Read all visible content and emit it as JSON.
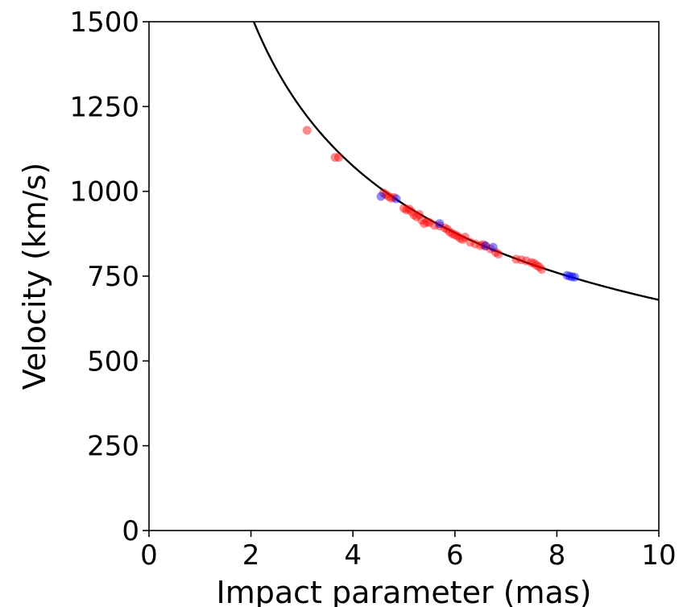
{
  "chart_data": {
    "type": "scatter",
    "title": "",
    "xlabel": "Impact parameter (mas)",
    "ylabel": "Velocity (km/s)",
    "xlim": [
      0,
      10
    ],
    "ylim": [
      0,
      1500
    ],
    "xticks": [
      "0",
      "2",
      "4",
      "6",
      "8",
      "10"
    ],
    "yticks": [
      "0",
      "250",
      "500",
      "750",
      "1000",
      "1250",
      "1500"
    ],
    "grid": false,
    "legend": "none",
    "fit_curve": {
      "form": "v = k / sqrt(b)",
      "k": 2150,
      "color": "#000000",
      "x_range": [
        2.05,
        10
      ]
    },
    "series": [
      {
        "color": "#ff0000",
        "points": [
          [
            3.1,
            1180
          ],
          [
            3.65,
            1100
          ],
          [
            3.72,
            1100
          ],
          [
            4.6,
            995
          ],
          [
            4.65,
            990
          ],
          [
            4.7,
            985
          ],
          [
            4.75,
            980
          ],
          [
            4.8,
            982
          ],
          [
            5.0,
            950
          ],
          [
            5.05,
            945
          ],
          [
            5.1,
            948
          ],
          [
            5.15,
            940
          ],
          [
            5.2,
            930
          ],
          [
            5.25,
            925
          ],
          [
            5.3,
            932
          ],
          [
            5.35,
            915
          ],
          [
            5.4,
            905
          ],
          [
            5.45,
            910
          ],
          [
            5.5,
            908
          ],
          [
            5.6,
            900
          ],
          [
            5.7,
            898
          ],
          [
            5.8,
            892
          ],
          [
            5.85,
            888
          ],
          [
            5.9,
            880
          ],
          [
            5.95,
            875
          ],
          [
            6.0,
            872
          ],
          [
            6.05,
            868
          ],
          [
            6.1,
            862
          ],
          [
            6.15,
            858
          ],
          [
            6.2,
            865
          ],
          [
            6.3,
            850
          ],
          [
            6.4,
            845
          ],
          [
            6.5,
            840
          ],
          [
            6.55,
            843
          ],
          [
            6.6,
            838
          ],
          [
            6.7,
            830
          ],
          [
            6.8,
            820
          ],
          [
            6.85,
            815
          ],
          [
            7.2,
            800
          ],
          [
            7.3,
            798
          ],
          [
            7.4,
            795
          ],
          [
            7.5,
            790
          ],
          [
            7.55,
            788
          ],
          [
            7.6,
            782
          ],
          [
            7.65,
            778
          ],
          [
            7.7,
            770
          ]
        ]
      },
      {
        "color": "#0000ff",
        "points": [
          [
            4.55,
            985
          ],
          [
            4.85,
            978
          ],
          [
            5.7,
            905
          ],
          [
            6.6,
            840
          ],
          [
            6.75,
            835
          ],
          [
            8.2,
            752
          ],
          [
            8.25,
            750
          ],
          [
            8.3,
            748
          ],
          [
            8.35,
            747
          ]
        ]
      }
    ]
  }
}
